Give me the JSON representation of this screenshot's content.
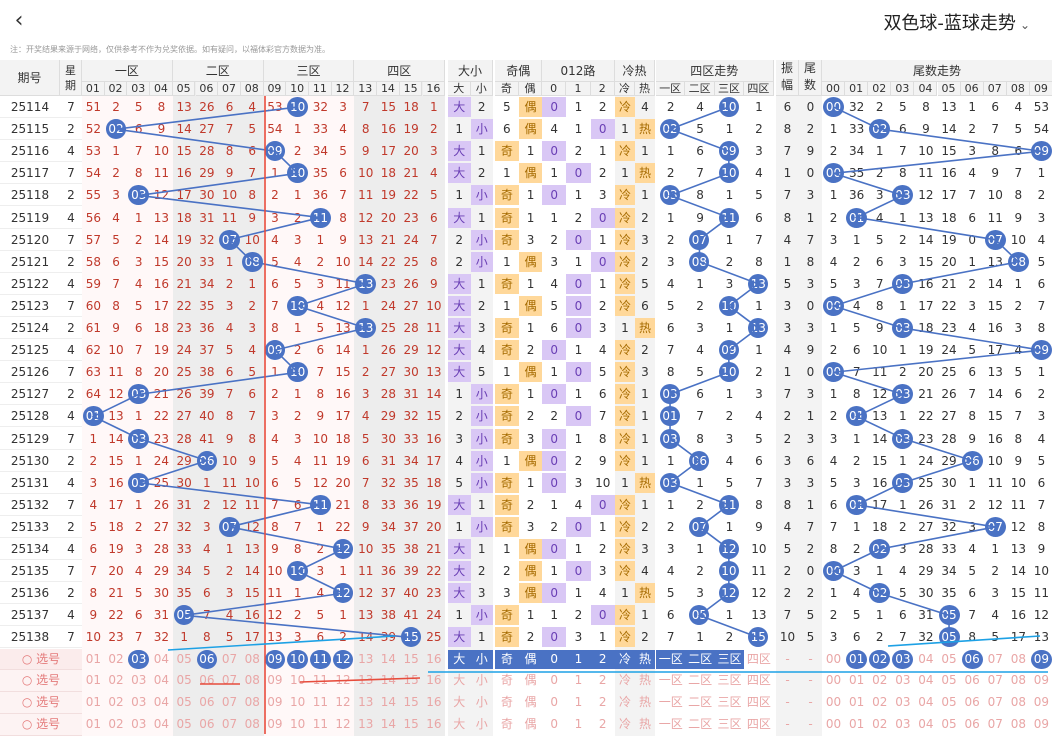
{
  "header": {
    "back_icon": "chevron-left-icon",
    "title": "双色球-蓝球走势",
    "title_icon": "chevron-down-icon"
  },
  "disclaimer": "注：开奖结果来源于网络，仅供参考不作为兑奖依据。如有疑问，以福体彩官方数据为准。",
  "columns": {
    "period": "期号",
    "week": "星期",
    "zones": [
      "一区",
      "二区",
      "三区",
      "四区"
    ],
    "num_labels": [
      "01",
      "02",
      "03",
      "04",
      "05",
      "06",
      "07",
      "08",
      "09",
      "10",
      "11",
      "12",
      "13",
      "14",
      "15",
      "16"
    ],
    "dx": "大小",
    "dx_labels": [
      "大",
      "小"
    ],
    "jo": "奇偶",
    "jo_labels": [
      "奇",
      "偶"
    ],
    "route": "012路",
    "route_labels": [
      "0",
      "1",
      "2"
    ],
    "lr": "冷热",
    "lr_labels": [
      "冷",
      "热"
    ],
    "zone_trend": "四区走势",
    "zone_trend_labels": [
      "一区",
      "二区",
      "三区",
      "四区"
    ],
    "amp": "振幅",
    "tail": "尾数",
    "tail_trend": "尾数走势",
    "tail_labels": [
      "00",
      "01",
      "02",
      "03",
      "04",
      "05",
      "06",
      "07",
      "08",
      "09"
    ]
  },
  "colors": {
    "ball": "#4a72c4",
    "line": "#4a72c4",
    "red_num": "#c0392b",
    "red_line": "#e74c3c",
    "cyan_line": "#1da1e5"
  },
  "rows": [
    {
      "p": "25114",
      "w": "7",
      "b": 10,
      "m": [
        51,
        2,
        5,
        8,
        13,
        26,
        6,
        4,
        53,
        0,
        32,
        3,
        7,
        15,
        18,
        1
      ],
      "s": "大",
      "sv": 2,
      "o": "偶",
      "ov": 5,
      "r": 0,
      "rv": [
        0,
        1,
        2
      ],
      "l": "冷",
      "lv": 4,
      "z": 3,
      "zv": [
        2,
        4,
        0,
        1
      ],
      "a": 6,
      "t": 0,
      "tv": [
        0,
        32,
        2,
        5,
        8,
        13,
        1,
        6,
        4,
        53
      ]
    },
    {
      "p": "25115",
      "w": "2",
      "b": 2,
      "m": [
        52,
        0,
        6,
        9,
        14,
        27,
        7,
        5,
        54,
        1,
        33,
        4,
        8,
        16,
        19,
        2
      ],
      "s": "小",
      "sv": 1,
      "o": "偶",
      "ov": 6,
      "r": 2,
      "rv": [
        4,
        1,
        0
      ],
      "l": "热",
      "lv": 1,
      "z": 1,
      "zv": [
        0,
        5,
        1,
        2
      ],
      "a": 8,
      "t": 2,
      "tv": [
        1,
        33,
        0,
        6,
        9,
        14,
        2,
        7,
        5,
        54
      ]
    },
    {
      "p": "25116",
      "w": "4",
      "b": 9,
      "m": [
        53,
        1,
        7,
        10,
        15,
        28,
        8,
        6,
        0,
        2,
        34,
        5,
        9,
        17,
        20,
        3
      ],
      "s": "大",
      "sv": 1,
      "o": "奇",
      "ov": 1,
      "r": 0,
      "rv": [
        0,
        2,
        1
      ],
      "l": "冷",
      "lv": 1,
      "z": 3,
      "zv": [
        1,
        6,
        0,
        3
      ],
      "a": 7,
      "t": 9,
      "tv": [
        2,
        34,
        1,
        7,
        10,
        15,
        3,
        8,
        6,
        0
      ]
    },
    {
      "p": "25117",
      "w": "7",
      "b": 10,
      "m": [
        54,
        2,
        8,
        11,
        16,
        29,
        9,
        7,
        1,
        0,
        35,
        6,
        10,
        18,
        21,
        4
      ],
      "s": "大",
      "sv": 2,
      "o": "偶",
      "ov": 1,
      "r": 1,
      "rv": [
        1,
        0,
        2
      ],
      "l": "热",
      "lv": 1,
      "z": 3,
      "zv": [
        2,
        7,
        0,
        4
      ],
      "a": 1,
      "t": 0,
      "tv": [
        0,
        35,
        2,
        8,
        11,
        16,
        4,
        9,
        7,
        1
      ]
    },
    {
      "p": "25118",
      "w": "2",
      "b": 3,
      "m": [
        55,
        3,
        0,
        12,
        17,
        30,
        10,
        8,
        2,
        1,
        36,
        7,
        11,
        19,
        22,
        5
      ],
      "s": "小",
      "sv": 1,
      "o": "奇",
      "ov": 1,
      "r": 0,
      "rv": [
        0,
        1,
        3
      ],
      "l": "冷",
      "lv": 1,
      "z": 1,
      "zv": [
        0,
        8,
        1,
        5
      ],
      "a": 7,
      "t": 3,
      "tv": [
        1,
        36,
        3,
        0,
        12,
        17,
        7,
        10,
        8,
        2
      ]
    },
    {
      "p": "25119",
      "w": "4",
      "b": 11,
      "m": [
        56,
        4,
        1,
        13,
        18,
        31,
        11,
        9,
        3,
        2,
        0,
        8,
        12,
        20,
        23,
        6
      ],
      "s": "大",
      "sv": 1,
      "o": "奇",
      "ov": 1,
      "r": 2,
      "rv": [
        1,
        2,
        0
      ],
      "l": "冷",
      "lv": 2,
      "z": 3,
      "zv": [
        1,
        9,
        0,
        6
      ],
      "a": 8,
      "t": 1,
      "tv": [
        2,
        0,
        4,
        1,
        13,
        18,
        6,
        11,
        9,
        3
      ]
    },
    {
      "p": "25120",
      "w": "7",
      "b": 7,
      "m": [
        57,
        5,
        2,
        14,
        19,
        32,
        0,
        10,
        4,
        3,
        1,
        9,
        13,
        21,
        24,
        7
      ],
      "s": "小",
      "sv": 2,
      "o": "奇",
      "ov": 3,
      "r": 1,
      "rv": [
        2,
        0,
        1
      ],
      "l": "冷",
      "lv": 3,
      "z": 2,
      "zv": [
        2,
        0,
        1,
        7
      ],
      "a": 4,
      "t": 7,
      "tv": [
        3,
        1,
        5,
        2,
        14,
        19,
        0,
        12,
        10,
        4
      ]
    },
    {
      "p": "25121",
      "w": "2",
      "b": 8,
      "m": [
        58,
        6,
        3,
        15,
        20,
        33,
        1,
        0,
        5,
        4,
        2,
        10,
        14,
        22,
        25,
        8
      ],
      "s": "小",
      "sv": 2,
      "o": "偶",
      "ov": 1,
      "r": 2,
      "rv": [
        3,
        1,
        0
      ],
      "l": "冷",
      "lv": 2,
      "z": 2,
      "zv": [
        3,
        0,
        2,
        8
      ],
      "a": 1,
      "t": 8,
      "tv": [
        4,
        2,
        6,
        3,
        15,
        20,
        1,
        13,
        0,
        5
      ]
    },
    {
      "p": "25122",
      "w": "4",
      "b": 13,
      "m": [
        59,
        7,
        4,
        16,
        21,
        34,
        2,
        1,
        6,
        5,
        3,
        11,
        0,
        23,
        26,
        9
      ],
      "s": "大",
      "sv": 1,
      "o": "奇",
      "ov": 1,
      "r": 1,
      "rv": [
        4,
        0,
        1
      ],
      "l": "冷",
      "lv": 5,
      "z": 4,
      "zv": [
        4,
        1,
        3,
        0
      ],
      "a": 5,
      "t": 3,
      "tv": [
        5,
        3,
        7,
        0,
        16,
        21,
        2,
        14,
        1,
        6
      ]
    },
    {
      "p": "25123",
      "w": "7",
      "b": 10,
      "m": [
        60,
        8,
        5,
        17,
        22,
        35,
        3,
        2,
        7,
        0,
        4,
        12,
        1,
        24,
        27,
        10
      ],
      "s": "大",
      "sv": 2,
      "o": "偶",
      "ov": 1,
      "r": 1,
      "rv": [
        5,
        0,
        2
      ],
      "l": "冷",
      "lv": 6,
      "z": 3,
      "zv": [
        5,
        2,
        0,
        1
      ],
      "a": 3,
      "t": 0,
      "tv": [
        0,
        4,
        8,
        1,
        17,
        22,
        3,
        15,
        2,
        7
      ]
    },
    {
      "p": "25124",
      "w": "2",
      "b": 13,
      "m": [
        61,
        9,
        6,
        18,
        23,
        36,
        4,
        3,
        8,
        1,
        5,
        13,
        0,
        25,
        28,
        11
      ],
      "s": "大",
      "sv": 3,
      "o": "奇",
      "ov": 1,
      "r": 1,
      "rv": [
        6,
        0,
        3
      ],
      "l": "热",
      "lv": 1,
      "z": 4,
      "zv": [
        6,
        3,
        1,
        0
      ],
      "a": 3,
      "t": 3,
      "tv": [
        1,
        5,
        9,
        0,
        18,
        23,
        4,
        16,
        3,
        8
      ]
    },
    {
      "p": "25125",
      "w": "4",
      "b": 9,
      "m": [
        62,
        10,
        7,
        19,
        24,
        37,
        5,
        4,
        0,
        2,
        6,
        14,
        1,
        26,
        29,
        12
      ],
      "s": "大",
      "sv": 4,
      "o": "奇",
      "ov": 2,
      "r": 0,
      "rv": [
        0,
        1,
        4
      ],
      "l": "冷",
      "lv": 2,
      "z": 3,
      "zv": [
        7,
        4,
        0,
        1
      ],
      "a": 4,
      "t": 9,
      "tv": [
        2,
        6,
        10,
        1,
        19,
        24,
        5,
        17,
        4,
        0
      ]
    },
    {
      "p": "25126",
      "w": "7",
      "b": 10,
      "m": [
        63,
        11,
        8,
        20,
        25,
        38,
        6,
        5,
        1,
        0,
        7,
        15,
        2,
        27,
        30,
        13
      ],
      "s": "大",
      "sv": 5,
      "o": "偶",
      "ov": 1,
      "r": 1,
      "rv": [
        1,
        0,
        5
      ],
      "l": "冷",
      "lv": 3,
      "z": 3,
      "zv": [
        8,
        5,
        0,
        2
      ],
      "a": 1,
      "t": 0,
      "tv": [
        0,
        7,
        11,
        2,
        20,
        25,
        6,
        13,
        5,
        1
      ]
    },
    {
      "p": "25127",
      "w": "2",
      "b": 3,
      "m": [
        64,
        12,
        0,
        21,
        26,
        39,
        7,
        6,
        2,
        1,
        8,
        16,
        3,
        28,
        31,
        14
      ],
      "s": "小",
      "sv": 1,
      "o": "奇",
      "ov": 1,
      "r": 0,
      "rv": [
        0,
        1,
        6
      ],
      "l": "冷",
      "lv": 1,
      "z": 1,
      "zv": [
        0,
        6,
        1,
        3
      ],
      "a": 7,
      "t": 3,
      "tv": [
        1,
        8,
        12,
        0,
        21,
        26,
        7,
        14,
        6,
        2
      ]
    },
    {
      "p": "25128",
      "w": "4",
      "b": 1,
      "m": [
        0,
        13,
        1,
        22,
        27,
        40,
        8,
        7,
        3,
        2,
        9,
        17,
        4,
        29,
        32,
        15
      ],
      "s": "小",
      "sv": 2,
      "o": "奇",
      "ov": 2,
      "r": 1,
      "rv": [
        2,
        0,
        7
      ],
      "l": "冷",
      "lv": 1,
      "z": 1,
      "zv": [
        0,
        7,
        2,
        4
      ],
      "a": 2,
      "t": 1,
      "tv": [
        2,
        0,
        13,
        1,
        22,
        27,
        8,
        15,
        7,
        3
      ]
    },
    {
      "p": "25129",
      "w": "7",
      "b": 3,
      "m": [
        1,
        14,
        0,
        23,
        28,
        41,
        9,
        8,
        4,
        3,
        10,
        18,
        5,
        30,
        33,
        16
      ],
      "s": "小",
      "sv": 3,
      "o": "奇",
      "ov": 3,
      "r": 0,
      "rv": [
        0,
        1,
        8
      ],
      "l": "冷",
      "lv": 1,
      "z": 1,
      "zv": [
        0,
        8,
        3,
        5
      ],
      "a": 2,
      "t": 3,
      "tv": [
        3,
        1,
        14,
        0,
        23,
        28,
        9,
        16,
        8,
        4
      ]
    },
    {
      "p": "25130",
      "w": "2",
      "b": 6,
      "m": [
        2,
        15,
        1,
        24,
        29,
        0,
        10,
        9,
        5,
        4,
        11,
        19,
        6,
        31,
        34,
        17
      ],
      "s": "小",
      "sv": 4,
      "o": "偶",
      "ov": 1,
      "r": 0,
      "rv": [
        0,
        2,
        9
      ],
      "l": "冷",
      "lv": 1,
      "z": 2,
      "zv": [
        1,
        0,
        4,
        6
      ],
      "a": 3,
      "t": 6,
      "tv": [
        4,
        2,
        15,
        1,
        24,
        29,
        0,
        10,
        9,
        5
      ]
    },
    {
      "p": "25131",
      "w": "4",
      "b": 3,
      "m": [
        3,
        16,
        0,
        25,
        30,
        1,
        11,
        10,
        6,
        5,
        12,
        20,
        7,
        32,
        35,
        18
      ],
      "s": "小",
      "sv": 5,
      "o": "奇",
      "ov": 1,
      "r": 0,
      "rv": [
        0,
        3,
        10
      ],
      "l": "热",
      "lv": 1,
      "z": 1,
      "zv": [
        0,
        1,
        5,
        7
      ],
      "a": 3,
      "t": 3,
      "tv": [
        5,
        3,
        16,
        0,
        25,
        30,
        1,
        11,
        10,
        6
      ]
    },
    {
      "p": "25132",
      "w": "7",
      "b": 11,
      "m": [
        4,
        17,
        1,
        26,
        31,
        2,
        12,
        11,
        7,
        6,
        0,
        21,
        8,
        33,
        36,
        19
      ],
      "s": "大",
      "sv": 1,
      "o": "奇",
      "ov": 2,
      "r": 2,
      "rv": [
        1,
        4,
        0
      ],
      "l": "冷",
      "lv": 1,
      "z": 3,
      "zv": [
        1,
        2,
        0,
        8
      ],
      "a": 8,
      "t": 1,
      "tv": [
        6,
        0,
        17,
        1,
        26,
        31,
        2,
        12,
        11,
        7
      ]
    },
    {
      "p": "25133",
      "w": "2",
      "b": 7,
      "m": [
        5,
        18,
        2,
        27,
        32,
        3,
        0,
        12,
        8,
        7,
        1,
        22,
        9,
        34,
        37,
        20
      ],
      "s": "小",
      "sv": 1,
      "o": "奇",
      "ov": 3,
      "r": 1,
      "rv": [
        2,
        0,
        1
      ],
      "l": "冷",
      "lv": 2,
      "z": 2,
      "zv": [
        2,
        0,
        1,
        9
      ],
      "a": 4,
      "t": 7,
      "tv": [
        7,
        1,
        18,
        2,
        27,
        32,
        3,
        0,
        12,
        8
      ]
    },
    {
      "p": "25134",
      "w": "4",
      "b": 12,
      "m": [
        6,
        19,
        3,
        28,
        33,
        4,
        1,
        13,
        9,
        8,
        2,
        0,
        10,
        35,
        38,
        21
      ],
      "s": "大",
      "sv": 1,
      "o": "偶",
      "ov": 1,
      "r": 0,
      "rv": [
        0,
        1,
        2
      ],
      "l": "冷",
      "lv": 3,
      "z": 3,
      "zv": [
        3,
        1,
        0,
        10
      ],
      "a": 5,
      "t": 2,
      "tv": [
        8,
        2,
        0,
        3,
        28,
        33,
        4,
        1,
        13,
        9
      ]
    },
    {
      "p": "25135",
      "w": "7",
      "b": 10,
      "m": [
        7,
        20,
        4,
        29,
        34,
        5,
        2,
        14,
        10,
        0,
        3,
        1,
        11,
        36,
        39,
        22
      ],
      "s": "大",
      "sv": 2,
      "o": "偶",
      "ov": 2,
      "r": 1,
      "rv": [
        1,
        0,
        3
      ],
      "l": "冷",
      "lv": 4,
      "z": 3,
      "zv": [
        4,
        2,
        0,
        11
      ],
      "a": 2,
      "t": 0,
      "tv": [
        0,
        3,
        1,
        4,
        29,
        34,
        5,
        2,
        14,
        10
      ]
    },
    {
      "p": "25136",
      "w": "2",
      "b": 12,
      "m": [
        8,
        21,
        5,
        30,
        35,
        6,
        3,
        15,
        11,
        1,
        4,
        0,
        12,
        37,
        40,
        23
      ],
      "s": "大",
      "sv": 3,
      "o": "偶",
      "ov": 3,
      "r": 0,
      "rv": [
        0,
        1,
        4
      ],
      "l": "热",
      "lv": 1,
      "z": 3,
      "zv": [
        5,
        3,
        0,
        12
      ],
      "a": 2,
      "t": 2,
      "tv": [
        1,
        4,
        0,
        5,
        30,
        35,
        6,
        3,
        15,
        11
      ]
    },
    {
      "p": "25137",
      "w": "4",
      "b": 5,
      "m": [
        9,
        22,
        6,
        31,
        0,
        7,
        4,
        16,
        12,
        2,
        5,
        1,
        13,
        38,
        41,
        24
      ],
      "s": "小",
      "sv": 1,
      "o": "奇",
      "ov": 1,
      "r": 2,
      "rv": [
        1,
        2,
        0
      ],
      "l": "冷",
      "lv": 1,
      "z": 2,
      "zv": [
        6,
        0,
        1,
        13
      ],
      "a": 7,
      "t": 5,
      "tv": [
        2,
        5,
        1,
        6,
        31,
        0,
        7,
        4,
        16,
        12
      ]
    },
    {
      "p": "25138",
      "w": "7",
      "b": 15,
      "m": [
        10,
        23,
        7,
        32,
        1,
        8,
        5,
        17,
        13,
        3,
        6,
        2,
        14,
        39,
        0,
        25
      ],
      "s": "大",
      "sv": 1,
      "o": "奇",
      "ov": 2,
      "r": 0,
      "rv": [
        0,
        3,
        1
      ],
      "l": "冷",
      "lv": 2,
      "z": 4,
      "zv": [
        7,
        1,
        2,
        0
      ],
      "a": 10,
      "t": 5,
      "tv": [
        3,
        6,
        2,
        7,
        32,
        0,
        8,
        5,
        17,
        13
      ]
    }
  ],
  "select_rows": {
    "label": "选号",
    "first_selected_nums": [
      "03",
      "06",
      "09",
      "10",
      "11",
      "12"
    ],
    "first_selected_tails": [
      "01",
      "02",
      "03",
      "06",
      "09"
    ]
  }
}
